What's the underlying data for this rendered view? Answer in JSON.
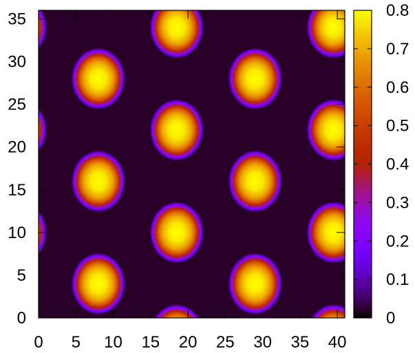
{
  "chart_data": [
    {
      "type": "heatmap",
      "title": "",
      "xlabel": "",
      "ylabel": "",
      "xlim": [
        0,
        41
      ],
      "ylim": [
        0,
        36
      ],
      "x_ticks": [
        "0",
        "5",
        "10",
        "15",
        "20",
        "25",
        "30",
        "35",
        "40"
      ],
      "y_ticks": [
        "0",
        "5",
        "10",
        "15",
        "20",
        "25",
        "30",
        "35"
      ],
      "colorbar": {
        "range": [
          0,
          0.8
        ],
        "ticks": [
          "0",
          "0.1",
          "0.2",
          "0.3",
          "0.4",
          "0.5",
          "0.6",
          "0.7",
          "0.8"
        ],
        "palette": "black-purple-red-orange-yellow"
      },
      "spot_peak_value": 0.8,
      "spot_radius": 3.2,
      "background_value": 0.02,
      "spot_centers": [
        {
          "x": 8.0,
          "y": 4.0
        },
        {
          "x": 8.0,
          "y": 16.0
        },
        {
          "x": 8.0,
          "y": 28.0
        },
        {
          "x": 29.0,
          "y": 4.0
        },
        {
          "x": 29.0,
          "y": 16.0
        },
        {
          "x": 29.0,
          "y": 28.0
        },
        {
          "x": 18.5,
          "y": -2.0
        },
        {
          "x": 18.5,
          "y": 10.0
        },
        {
          "x": 18.5,
          "y": 22.0
        },
        {
          "x": 18.5,
          "y": 34.0
        },
        {
          "x": 39.5,
          "y": -2.0
        },
        {
          "x": 39.5,
          "y": 10.0
        },
        {
          "x": 39.5,
          "y": 22.0
        },
        {
          "x": 39.5,
          "y": 34.0
        },
        {
          "x": -2.5,
          "y": 10.0
        },
        {
          "x": -2.5,
          "y": 22.0
        },
        {
          "x": -2.5,
          "y": 34.0
        }
      ]
    }
  ]
}
